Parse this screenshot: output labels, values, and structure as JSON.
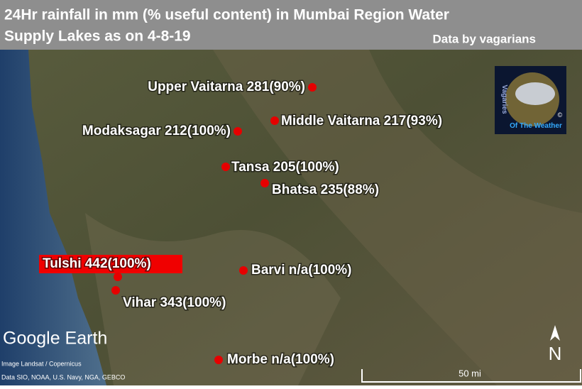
{
  "header": {
    "title_lines": [
      "24Hr rainfall in mm (% useful content) in Mumbai Region Water",
      "Supply Lakes as on 4-8-19"
    ],
    "credit": "Data by vagarians"
  },
  "lakes": [
    {
      "label": "Upper Vaitarna 281(90%)"
    },
    {
      "label": "Middle Vaitarna 217(93%)"
    },
    {
      "label": "Modaksagar 212(100%)"
    },
    {
      "label": "Tansa 205(100%)"
    },
    {
      "label": "Bhatsa 235(88%)"
    },
    {
      "label": "Tulshi 442(100%)"
    },
    {
      "label": "Barvi n/a(100%)"
    },
    {
      "label": "Vihar 343(100%)"
    },
    {
      "label": "Morbe n/a(100%)"
    }
  ],
  "logo": {
    "left": "Vagaries",
    "right": "©",
    "bottom": "Of The Weather"
  },
  "map_ui": {
    "brand": "Google Earth",
    "imagery": "Image Landsat / Copernicus",
    "data_sources": "Data SIO, NOAA, U.S. Navy, NGA, GEBCO",
    "scale": "50 mi",
    "north": "N"
  }
}
